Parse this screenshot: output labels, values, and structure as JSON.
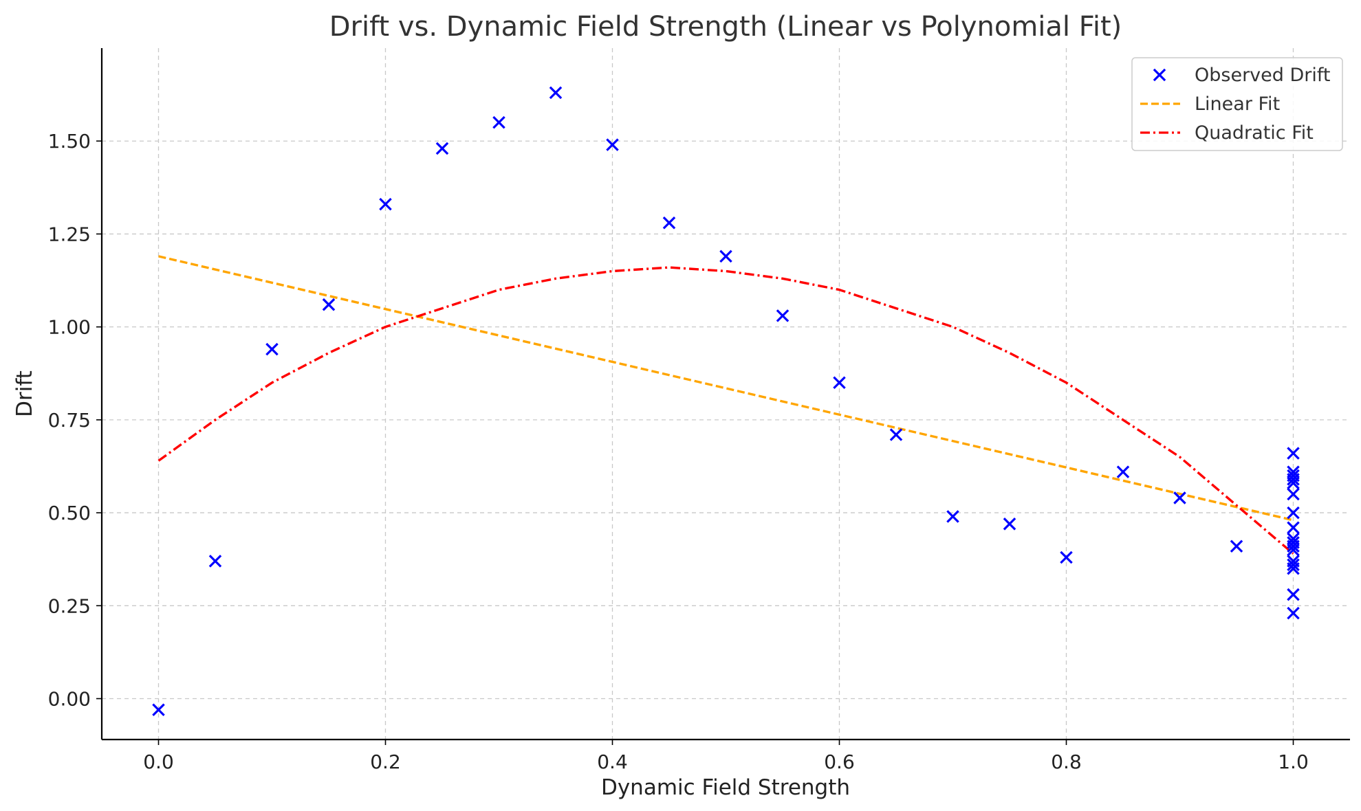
{
  "chart_data": {
    "type": "scatter",
    "title": "Drift vs. Dynamic Field Strength (Linear vs Polynomial Fit)",
    "xlabel": "Dynamic Field Strength",
    "ylabel": "Drift",
    "xlim": [
      -0.05,
      1.05
    ],
    "ylim": [
      -0.11,
      1.75
    ],
    "x_ticks": [
      "0.0",
      "0.2",
      "0.4",
      "0.6",
      "0.8",
      "1.0"
    ],
    "y_ticks": [
      "0.00",
      "0.25",
      "0.50",
      "0.75",
      "1.00",
      "1.25",
      "1.50"
    ],
    "grid": true,
    "legend_position": "top-right",
    "series": [
      {
        "name": "Observed Drift",
        "kind": "scatter",
        "marker": "x",
        "color": "#0000ff",
        "points": [
          [
            0.0,
            -0.03
          ],
          [
            0.05,
            0.37
          ],
          [
            0.1,
            0.94
          ],
          [
            0.15,
            1.06
          ],
          [
            0.2,
            1.33
          ],
          [
            0.25,
            1.48
          ],
          [
            0.3,
            1.55
          ],
          [
            0.35,
            1.63
          ],
          [
            0.4,
            1.49
          ],
          [
            0.45,
            1.28
          ],
          [
            0.5,
            1.19
          ],
          [
            0.55,
            1.03
          ],
          [
            0.6,
            0.85
          ],
          [
            0.65,
            0.71
          ],
          [
            0.7,
            0.49
          ],
          [
            0.75,
            0.47
          ],
          [
            0.8,
            0.38
          ],
          [
            0.85,
            0.61
          ],
          [
            0.9,
            0.54
          ],
          [
            0.95,
            0.41
          ],
          [
            1.0,
            0.66
          ],
          [
            1.0,
            0.61
          ],
          [
            1.0,
            0.6
          ],
          [
            1.0,
            0.59
          ],
          [
            1.0,
            0.58
          ],
          [
            1.0,
            0.55
          ],
          [
            1.0,
            0.5
          ],
          [
            1.0,
            0.46
          ],
          [
            1.0,
            0.43
          ],
          [
            1.0,
            0.42
          ],
          [
            1.0,
            0.41
          ],
          [
            1.0,
            0.4
          ],
          [
            1.0,
            0.37
          ],
          [
            1.0,
            0.36
          ],
          [
            1.0,
            0.35
          ],
          [
            1.0,
            0.28
          ],
          [
            1.0,
            0.23
          ]
        ]
      },
      {
        "name": "Linear Fit",
        "kind": "line",
        "style": "dashed",
        "color": "#ffa500",
        "x": [
          0.0,
          1.0
        ],
        "values": [
          1.19,
          0.48
        ]
      },
      {
        "name": "Quadratic Fit",
        "kind": "line",
        "style": "dashdot",
        "color": "#ff0000",
        "x": [
          0.0,
          0.05,
          0.1,
          0.15,
          0.2,
          0.25,
          0.3,
          0.35,
          0.4,
          0.45,
          0.5,
          0.55,
          0.6,
          0.65,
          0.7,
          0.75,
          0.8,
          0.85,
          0.9,
          0.95,
          1.0
        ],
        "values": [
          0.64,
          0.75,
          0.85,
          0.93,
          1.0,
          1.05,
          1.1,
          1.13,
          1.15,
          1.16,
          1.15,
          1.13,
          1.1,
          1.05,
          1.0,
          0.93,
          0.85,
          0.75,
          0.65,
          0.52,
          0.39
        ]
      }
    ]
  }
}
